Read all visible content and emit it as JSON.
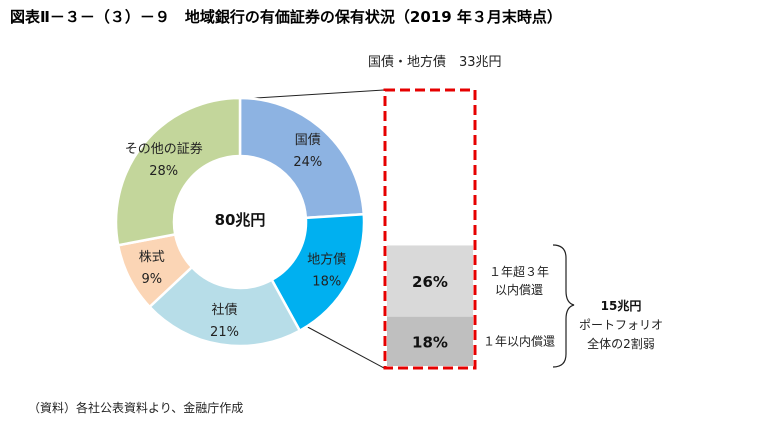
{
  "title": "図表Ⅱ－３－（３）－９　地域銀行の有価証券の保有状況（2019 年３月末時点）",
  "source": "（資料）各社公表資料より、金融庁作成",
  "chart_data": [
    {
      "type": "pie",
      "center_label": "80兆円",
      "slices": [
        {
          "label": "国債",
          "value": 24,
          "display": "24%",
          "color": "#8db3e2"
        },
        {
          "label": "地方債",
          "value": 18,
          "display": "18%",
          "color": "#00b0f0"
        },
        {
          "label": "社債",
          "value": 21,
          "display": "21%",
          "color": "#b7dde8"
        },
        {
          "label": "株式",
          "value": 9,
          "display": "9%",
          "color": "#fbd5b5"
        },
        {
          "label": "その他の証券",
          "value": 28,
          "display": "28%",
          "color": "#c3d69b"
        }
      ]
    },
    {
      "type": "bar",
      "title": "国債・地方債　33兆円",
      "segments": [
        {
          "value": 56,
          "display": "",
          "label": "",
          "color": "#ffffff"
        },
        {
          "value": 26,
          "display": "26%",
          "label_lines": [
            "１年超３年",
            "以内償還"
          ],
          "color": "#d9d9d9"
        },
        {
          "value": 18,
          "display": "18%",
          "label_lines": [
            "１年以内償還"
          ],
          "color": "#bfbfbf"
        }
      ],
      "bracket_lines": [
        "15兆円",
        "ポートフォリオ",
        "全体の2割弱"
      ],
      "highlight_color": "#e60000"
    }
  ]
}
